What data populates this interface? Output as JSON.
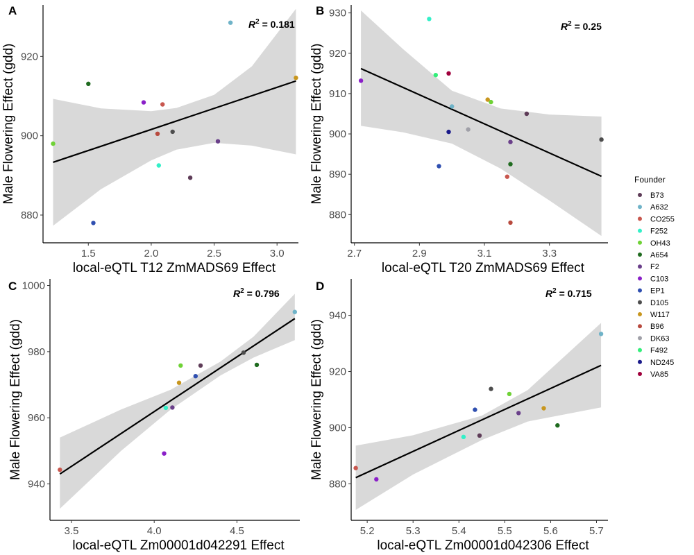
{
  "legend": {
    "title": "Founder",
    "entries": [
      {
        "name": "B73",
        "color": "#5e3c58"
      },
      {
        "name": "A632",
        "color": "#6fb3c8"
      },
      {
        "name": "CO255",
        "color": "#c8574e"
      },
      {
        "name": "F252",
        "color": "#33f0c8"
      },
      {
        "name": "OH43",
        "color": "#6fd236"
      },
      {
        "name": "A654",
        "color": "#1f6b1f"
      },
      {
        "name": "F2",
        "color": "#6a3f8a"
      },
      {
        "name": "C103",
        "color": "#8a1fc8"
      },
      {
        "name": "EP1",
        "color": "#2f4fb0"
      },
      {
        "name": "D105",
        "color": "#4d4d4d"
      },
      {
        "name": "W117",
        "color": "#c8961e"
      },
      {
        "name": "B96",
        "color": "#b84a3e"
      },
      {
        "name": "DK63",
        "color": "#a0a0a8"
      },
      {
        "name": "F492",
        "color": "#33ee7a"
      },
      {
        "name": "ND245",
        "color": "#1a1a8a"
      },
      {
        "name": "VA85",
        "color": "#a0003c"
      }
    ]
  },
  "chart_data": [
    {
      "panel": "A",
      "type": "scatter",
      "xlabel": "local-eQTL T12 ZmMADS69 Effect",
      "ylabel": "Male Flowering Effect (gdd)",
      "r2_label": "R",
      "r2_value": " = 0.181",
      "xlim": [
        1.14,
        3.17
      ],
      "ylim": [
        873,
        933
      ],
      "xticks": [
        1.5,
        2.0,
        2.5,
        3.0
      ],
      "xtick_labels": [
        "1.5",
        "2.0",
        "2.5",
        "3.0"
      ],
      "yticks": [
        880,
        900,
        920
      ],
      "ytick_labels": [
        "880",
        "900",
        "920"
      ],
      "fit": {
        "x": [
          1.22,
          3.15
        ],
        "y": [
          893.3,
          913.8
        ]
      },
      "band": {
        "x": [
          1.22,
          1.6,
          2.0,
          2.2,
          2.5,
          2.8,
          3.15
        ],
        "lower": [
          877.3,
          886.5,
          893.8,
          896.5,
          898.2,
          897.5,
          895.3
        ],
        "upper": [
          909.3,
          906.9,
          906.2,
          907.0,
          910.3,
          917.5,
          932.0
        ]
      },
      "points": [
        {
          "founder": "B73",
          "x": 2.31,
          "y": 889.4
        },
        {
          "founder": "A632",
          "x": 2.63,
          "y": 928.5
        },
        {
          "founder": "CO255",
          "x": 2.09,
          "y": 907.9
        },
        {
          "founder": "F252",
          "x": 2.06,
          "y": 892.5
        },
        {
          "founder": "OH43",
          "x": 1.22,
          "y": 898.0
        },
        {
          "founder": "A654",
          "x": 1.5,
          "y": 913.1
        },
        {
          "founder": "F2",
          "x": 2.53,
          "y": 898.6
        },
        {
          "founder": "C103",
          "x": 1.94,
          "y": 908.4
        },
        {
          "founder": "EP1",
          "x": 1.54,
          "y": 878.0
        },
        {
          "founder": "D105",
          "x": 2.17,
          "y": 901.0
        },
        {
          "founder": "W117",
          "x": 3.15,
          "y": 914.6
        },
        {
          "founder": "B96",
          "x": 2.05,
          "y": 900.5
        }
      ]
    },
    {
      "panel": "B",
      "type": "scatter",
      "xlabel": "local-eQTL T20 ZmMADS69 Effect",
      "ylabel": "Male Flowering Effect (gdd)",
      "r2_label": "R",
      "r2_value": " = 0.25",
      "xlim": [
        2.69,
        3.48
      ],
      "ylim": [
        873,
        932
      ],
      "xticks": [
        2.7,
        2.9,
        3.1,
        3.3
      ],
      "xtick_labels": [
        "2.7",
        "2.9",
        "3.1",
        "3.3"
      ],
      "yticks": [
        880,
        890,
        900,
        910,
        920,
        930
      ],
      "ytick_labels": [
        "880",
        "890",
        "900",
        "910",
        "920",
        "930"
      ],
      "fit": {
        "x": [
          2.72,
          3.46
        ],
        "y": [
          916.2,
          889.5
        ]
      },
      "band": {
        "x": [
          2.72,
          2.85,
          3.0,
          3.15,
          3.3,
          3.46
        ],
        "lower": [
          902.0,
          900.4,
          897.6,
          891.4,
          883.5,
          874.7
        ],
        "upper": [
          930.6,
          921.0,
          910.7,
          906.3,
          904.8,
          904.3
        ]
      },
      "points": [
        {
          "founder": "B73",
          "x": 3.23,
          "y": 905.0
        },
        {
          "founder": "CO255",
          "x": 3.17,
          "y": 889.4
        },
        {
          "founder": "F252",
          "x": 2.93,
          "y": 928.5
        },
        {
          "founder": "OH43",
          "x": 3.12,
          "y": 907.9
        },
        {
          "founder": "A654",
          "x": 3.18,
          "y": 892.5
        },
        {
          "founder": "F2",
          "x": 3.18,
          "y": 898.0
        },
        {
          "founder": "C103",
          "x": 2.72,
          "y": 913.2
        },
        {
          "founder": "EP1",
          "x": 2.96,
          "y": 892.0
        },
        {
          "founder": "D105",
          "x": 3.46,
          "y": 898.6
        },
        {
          "founder": "W117",
          "x": 3.11,
          "y": 908.5
        },
        {
          "founder": "B96",
          "x": 3.18,
          "y": 878.0
        },
        {
          "founder": "DK63",
          "x": 3.05,
          "y": 901.1
        },
        {
          "founder": "F492",
          "x": 2.95,
          "y": 914.6
        },
        {
          "founder": "ND245",
          "x": 2.99,
          "y": 900.5
        },
        {
          "founder": "VA85",
          "x": 2.99,
          "y": 915.0
        },
        {
          "founder": "A632",
          "x": 3.0,
          "y": 906.8
        }
      ]
    },
    {
      "panel": "C",
      "type": "scatter",
      "xlabel": "local-eQTL Zm00001d042291 Effect",
      "ylabel": "Male Flowering Effect (gdd)",
      "r2_label": "R",
      "r2_value": " = 0.796",
      "xlim": [
        3.37,
        4.88
      ],
      "ylim": [
        929,
        1002
      ],
      "xticks": [
        3.5,
        4.0,
        4.5
      ],
      "xtick_labels": [
        "3.5",
        "4.0",
        "4.5"
      ],
      "yticks": [
        940,
        960,
        980,
        1000
      ],
      "ytick_labels": [
        "940",
        "960",
        "980",
        "1000"
      ],
      "fit": {
        "x": [
          3.43,
          4.85
        ],
        "y": [
          943.0,
          990.0
        ]
      },
      "band": {
        "x": [
          3.43,
          3.8,
          4.1,
          4.4,
          4.6,
          4.85
        ],
        "lower": [
          932.5,
          950.0,
          962.5,
          972.8,
          978.2,
          983.5
        ],
        "upper": [
          954.0,
          962.5,
          968.5,
          977.0,
          984.5,
          997.5
        ]
      },
      "points": [
        {
          "founder": "B73",
          "x": 4.28,
          "y": 975.8
        },
        {
          "founder": "A632",
          "x": 4.85,
          "y": 992.0
        },
        {
          "founder": "CO255",
          "x": 3.43,
          "y": 944.3
        },
        {
          "founder": "F252",
          "x": 4.07,
          "y": 963.0
        },
        {
          "founder": "OH43",
          "x": 4.16,
          "y": 975.8
        },
        {
          "founder": "A654",
          "x": 4.62,
          "y": 976.0
        },
        {
          "founder": "F2",
          "x": 4.11,
          "y": 963.1
        },
        {
          "founder": "C103",
          "x": 4.06,
          "y": 949.2
        },
        {
          "founder": "EP1",
          "x": 4.25,
          "y": 972.6
        },
        {
          "founder": "D105",
          "x": 4.54,
          "y": 979.7
        },
        {
          "founder": "W117",
          "x": 4.15,
          "y": 970.6
        }
      ]
    },
    {
      "panel": "D",
      "type": "scatter",
      "xlabel": "local-eQTL Zm00001d042306 Effect",
      "ylabel": "Male Flowering Effect (gdd)",
      "r2_label": "R",
      "r2_value": " = 0.715",
      "xlim": [
        5.165,
        5.725
      ],
      "ylim": [
        867,
        953
      ],
      "xticks": [
        5.2,
        5.3,
        5.4,
        5.5,
        5.6,
        5.7
      ],
      "xtick_labels": [
        "5.2",
        "5.3",
        "5.4",
        "5.5",
        "5.6",
        "5.7"
      ],
      "yticks": [
        880,
        900,
        920,
        940
      ],
      "ytick_labels": [
        "880",
        "900",
        "920",
        "940"
      ],
      "fit": {
        "x": [
          5.175,
          5.71
        ],
        "y": [
          882.2,
          922.2
        ]
      },
      "band": {
        "x": [
          5.175,
          5.3,
          5.45,
          5.55,
          5.71
        ],
        "lower": [
          870.7,
          883.3,
          895.6,
          902.2,
          907.2
        ],
        "upper": [
          893.6,
          897.3,
          904.3,
          913.4,
          937.3
        ]
      },
      "points": [
        {
          "founder": "B73",
          "x": 5.445,
          "y": 897.2
        },
        {
          "founder": "A632",
          "x": 5.71,
          "y": 933.4
        },
        {
          "founder": "CO255",
          "x": 5.175,
          "y": 885.6
        },
        {
          "founder": "F252",
          "x": 5.41,
          "y": 896.7
        },
        {
          "founder": "OH43",
          "x": 5.51,
          "y": 912.0
        },
        {
          "founder": "A654",
          "x": 5.615,
          "y": 900.8
        },
        {
          "founder": "F2",
          "x": 5.53,
          "y": 905.2
        },
        {
          "founder": "C103",
          "x": 5.22,
          "y": 881.6
        },
        {
          "founder": "EP1",
          "x": 5.435,
          "y": 906.4
        },
        {
          "founder": "D105",
          "x": 5.47,
          "y": 913.8
        },
        {
          "founder": "W117",
          "x": 5.585,
          "y": 906.9
        }
      ]
    }
  ]
}
